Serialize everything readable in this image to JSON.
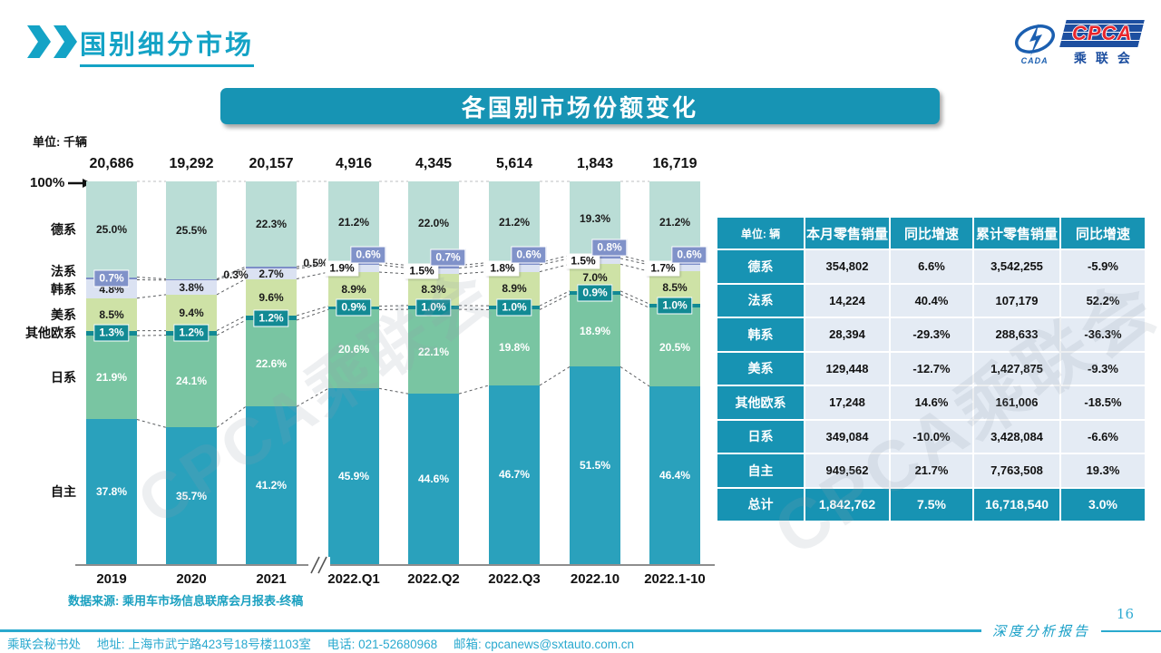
{
  "header": {
    "title": "国别细分市场"
  },
  "logo": {
    "cpca": "CPCA",
    "cada": "CADA",
    "cn": "乘联会"
  },
  "banner": {
    "title": "各国别市场份额变化"
  },
  "chart": {
    "unit_label": "单位: 千辆",
    "axis_100_label": "100%",
    "source_note": "数据来源: 乘用车市场信息联席会月报表-终稿",
    "watermark": "CPCA乘联会"
  },
  "chart_data": {
    "type": "bar",
    "subtype": "stacked-100-percent",
    "categories": [
      "2019",
      "2020",
      "2021",
      "2022.Q1",
      "2022.Q2",
      "2022.Q3",
      "2022.10",
      "2022.1-10"
    ],
    "totals": [
      "20,686",
      "19,292",
      "20,157",
      "4,916",
      "4,345",
      "5,614",
      "1,843",
      "16,719"
    ],
    "ylim": [
      0,
      100
    ],
    "series": [
      {
        "name": "自主",
        "color": "#2AA1BC",
        "label_color": "#ffffff",
        "values": [
          37.8,
          35.7,
          41.2,
          45.9,
          44.6,
          46.7,
          51.5,
          46.4
        ]
      },
      {
        "name": "日系",
        "color": "#79C5A2",
        "label_color": "#ffffff",
        "values": [
          21.9,
          24.1,
          22.6,
          20.6,
          22.1,
          19.8,
          18.9,
          20.5
        ]
      },
      {
        "name": "其他欧系",
        "color": "#128A94",
        "label_color": "#ffffff",
        "values": [
          1.3,
          1.2,
          1.2,
          0.9,
          1.0,
          1.0,
          0.9,
          1.0
        ]
      },
      {
        "name": "美系",
        "color": "#CEE2A6",
        "label_color": "#1a1a1a",
        "values": [
          8.5,
          9.4,
          9.6,
          8.9,
          8.3,
          8.9,
          7.0,
          8.5
        ]
      },
      {
        "name": "韩系",
        "color": "#DBE2F2",
        "label_color": "#1a1a1a",
        "values": [
          4.8,
          3.8,
          2.7,
          1.9,
          1.5,
          1.8,
          1.5,
          1.7
        ]
      },
      {
        "name": "法系",
        "color": "#7D8EC8",
        "label_color": "#ffffff",
        "values": [
          0.7,
          0.3,
          0.5,
          0.6,
          0.7,
          0.6,
          0.8,
          0.6
        ]
      },
      {
        "name": "德系",
        "color": "#BADDD6",
        "label_color": "#1a1a1a",
        "values": [
          25.0,
          25.5,
          22.3,
          21.2,
          22.0,
          21.2,
          19.3,
          21.2
        ]
      }
    ]
  },
  "table": {
    "headers": [
      "单位: 辆",
      "本月零售销量",
      "同比增速",
      "累计零售销量",
      "同比增速"
    ],
    "rows": [
      [
        "德系",
        "354,802",
        "6.6%",
        "3,542,255",
        "-5.9%"
      ],
      [
        "法系",
        "14,224",
        "40.4%",
        "107,179",
        "52.2%"
      ],
      [
        "韩系",
        "28,394",
        "-29.3%",
        "288,633",
        "-36.3%"
      ],
      [
        "美系",
        "129,448",
        "-12.7%",
        "1,427,875",
        "-9.3%"
      ],
      [
        "其他欧系",
        "17,248",
        "14.6%",
        "161,006",
        "-18.5%"
      ],
      [
        "日系",
        "349,084",
        "-10.0%",
        "3,428,084",
        "-6.6%"
      ],
      [
        "自主",
        "949,562",
        "21.7%",
        "7,763,508",
        "19.3%"
      ]
    ],
    "total_row": [
      "总计",
      "1,842,762",
      "7.5%",
      "16,718,540",
      "3.0%"
    ]
  },
  "footer": {
    "secretariat": "乘联会秘书处",
    "address": "地址: 上海市武宁路423号18号楼1103室",
    "phone": "电话: 021-52680968",
    "email": "邮箱: cpcanews@sxtauto.com.cn",
    "page_number": "16",
    "report_label": "深度分析报告"
  }
}
